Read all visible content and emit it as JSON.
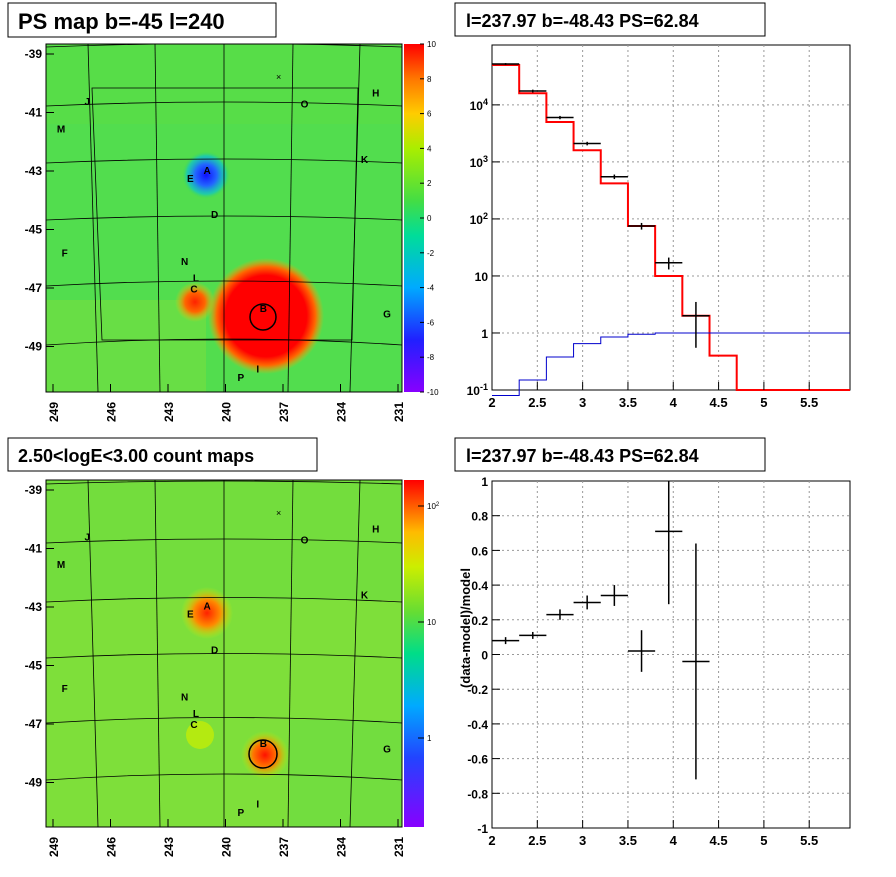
{
  "chart_data": [
    {
      "type": "heatmap",
      "title": "PS map b=-45 l=240",
      "x_ticks": [
        "249",
        "246",
        "243",
        "240",
        "237",
        "234",
        "231"
      ],
      "y_ticks": [
        "-39",
        "-41",
        "-43",
        "-45",
        "-47",
        "-49"
      ],
      "colorbar": {
        "min": -10,
        "max": 10,
        "ticks": [
          "10",
          "8",
          "6",
          "4",
          "2",
          "0",
          "-2",
          "-4",
          "-6",
          "-8",
          "-10"
        ]
      },
      "sources": [
        {
          "label": "A",
          "l": 241.0,
          "b": -43.3
        },
        {
          "label": "B",
          "l": 238.0,
          "b": -48.3
        },
        {
          "label": "C",
          "l": 241.7,
          "b": -47.6
        },
        {
          "label": "D",
          "l": 240.6,
          "b": -44.9
        },
        {
          "label": "E",
          "l": 241.9,
          "b": -43.6
        },
        {
          "label": "F",
          "l": 248.6,
          "b": -46.3
        },
        {
          "label": "G",
          "l": 231.4,
          "b": -48.5
        },
        {
          "label": "H",
          "l": 232.0,
          "b": -40.5
        },
        {
          "label": "I",
          "l": 238.3,
          "b": -50.5
        },
        {
          "label": "J",
          "l": 247.4,
          "b": -40.8
        },
        {
          "label": "K",
          "l": 232.6,
          "b": -42.9
        },
        {
          "label": "L",
          "l": 241.6,
          "b": -47.2
        },
        {
          "label": "M",
          "l": 248.8,
          "b": -41.8
        },
        {
          "label": "N",
          "l": 242.2,
          "b": -46.6
        },
        {
          "label": "O",
          "l": 235.8,
          "b": -40.9
        },
        {
          "label": "P",
          "l": 239.2,
          "b": -50.8
        }
      ]
    },
    {
      "type": "line",
      "title": "l=237.97 b=-48.43 PS=62.84",
      "yscale": "log",
      "xlim": [
        2,
        5.95
      ],
      "x_ticks": [
        "2",
        "2.5",
        "3",
        "3.5",
        "4",
        "4.5",
        "5",
        "5.5"
      ],
      "y_ticks": [
        "10^-1",
        "1",
        "10",
        "10^2",
        "10^3",
        "10^4"
      ],
      "series": [
        {
          "color": "#ff0000",
          "x": [
            2.0,
            2.3,
            2.6,
            2.9,
            3.2,
            3.5,
            3.8,
            4.1,
            4.4,
            4.7,
            5.95
          ],
          "values": [
            50000,
            16000,
            5000,
            1600,
            420,
            75,
            10,
            2,
            0.4,
            0.1,
            0.1
          ]
        },
        {
          "color": "#0000cc",
          "x": [
            2.0,
            2.3,
            2.6,
            2.9,
            3.2,
            3.5,
            3.8,
            5.95
          ],
          "values": [
            0.08,
            0.15,
            0.38,
            0.65,
            0.85,
            0.95,
            1.0,
            1.0
          ]
        }
      ],
      "points": [
        {
          "x": 2.15,
          "y": 52000,
          "ylo": 50000,
          "yhi": 54000
        },
        {
          "x": 2.45,
          "y": 17500,
          "ylo": 16500,
          "yhi": 18500
        },
        {
          "x": 2.75,
          "y": 6000,
          "ylo": 5600,
          "yhi": 6400
        },
        {
          "x": 3.05,
          "y": 2100,
          "ylo": 1950,
          "yhi": 2250
        },
        {
          "x": 3.35,
          "y": 550,
          "ylo": 500,
          "yhi": 600
        },
        {
          "x": 3.65,
          "y": 75,
          "ylo": 65,
          "yhi": 85
        },
        {
          "x": 3.95,
          "y": 17,
          "ylo": 13,
          "yhi": 21
        },
        {
          "x": 4.25,
          "y": 2,
          "ylo": 0.55,
          "yhi": 3.5
        }
      ]
    },
    {
      "type": "heatmap",
      "title": "2.50<logE<3.00 count maps",
      "x_ticks": [
        "249",
        "246",
        "243",
        "240",
        "237",
        "234",
        "231"
      ],
      "y_ticks": [
        "-39",
        "-41",
        "-43",
        "-45",
        "-47",
        "-49"
      ],
      "colorbar": {
        "scale": "log",
        "ticks": [
          "10^2",
          "10",
          "1"
        ]
      },
      "sources": [
        {
          "label": "A",
          "l": 241.0,
          "b": -43.3
        },
        {
          "label": "B",
          "l": 238.0,
          "b": -48.3
        },
        {
          "label": "C",
          "l": 241.7,
          "b": -47.6
        },
        {
          "label": "D",
          "l": 240.6,
          "b": -44.9
        },
        {
          "label": "E",
          "l": 241.9,
          "b": -43.6
        },
        {
          "label": "F",
          "l": 248.6,
          "b": -46.3
        },
        {
          "label": "G",
          "l": 231.4,
          "b": -48.5
        },
        {
          "label": "H",
          "l": 232.0,
          "b": -40.5
        },
        {
          "label": "I",
          "l": 238.3,
          "b": -50.5
        },
        {
          "label": "J",
          "l": 247.4,
          "b": -40.8
        },
        {
          "label": "K",
          "l": 232.6,
          "b": -42.9
        },
        {
          "label": "L",
          "l": 241.6,
          "b": -47.2
        },
        {
          "label": "M",
          "l": 248.8,
          "b": -41.8
        },
        {
          "label": "N",
          "l": 242.2,
          "b": -46.6
        },
        {
          "label": "O",
          "l": 235.8,
          "b": -40.9
        },
        {
          "label": "P",
          "l": 239.2,
          "b": -50.8
        }
      ]
    },
    {
      "type": "scatter",
      "title": "l=237.97 b=-48.43 PS=62.84",
      "ylabel": "(data-model)/model",
      "xlim": [
        2,
        5.95
      ],
      "ylim": [
        -1,
        1
      ],
      "x_ticks": [
        "2",
        "2.5",
        "3",
        "3.5",
        "4",
        "4.5",
        "5",
        "5.5"
      ],
      "y_ticks": [
        "1",
        "0.8",
        "0.6",
        "0.4",
        "0.2",
        "0",
        "-0.2",
        "-0.4",
        "-0.6",
        "-0.8",
        "-1"
      ],
      "points": [
        {
          "x": 2.15,
          "y": 0.08,
          "err": 0.02
        },
        {
          "x": 2.45,
          "y": 0.11,
          "err": 0.02
        },
        {
          "x": 2.75,
          "y": 0.23,
          "err": 0.03
        },
        {
          "x": 3.05,
          "y": 0.3,
          "err": 0.04
        },
        {
          "x": 3.35,
          "y": 0.34,
          "err": 0.06
        },
        {
          "x": 3.65,
          "y": 0.02,
          "err": 0.12
        },
        {
          "x": 3.95,
          "y": 0.71,
          "err": 0.42
        },
        {
          "x": 4.25,
          "y": -0.04,
          "err": 0.68
        }
      ]
    }
  ]
}
